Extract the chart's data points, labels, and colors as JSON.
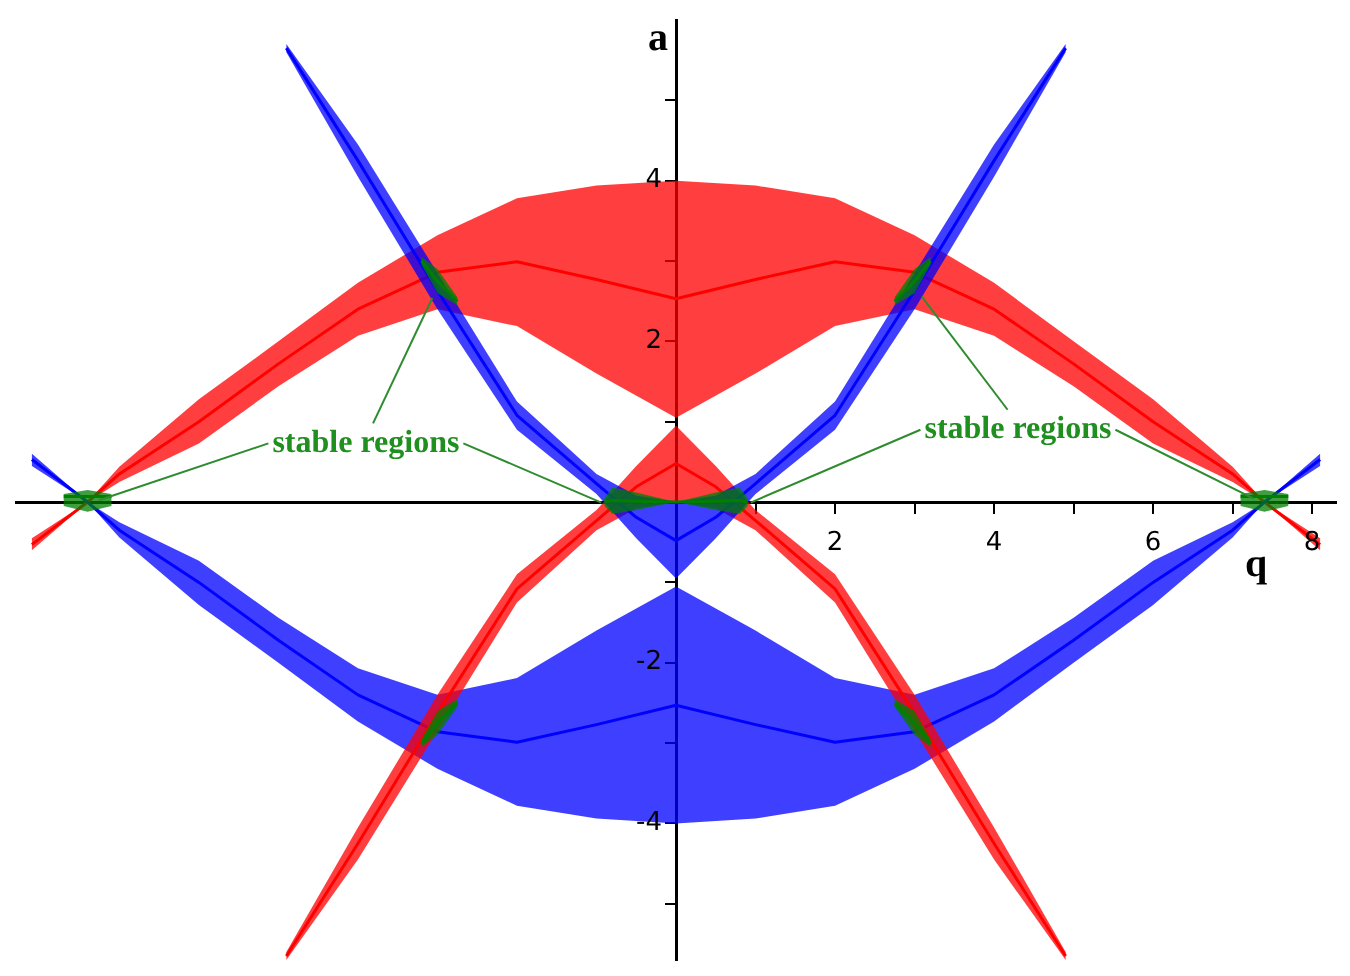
{
  "chart_data": {
    "type": "line",
    "xlabel": "q",
    "ylabel": "a",
    "xlim": [
      -8.3,
      8.3
    ],
    "ylim": [
      -5.7,
      6.0
    ],
    "xticks": [
      {
        "value": 1,
        "label": null
      },
      2,
      {
        "value": 3,
        "label": null
      },
      4,
      {
        "value": 5,
        "label": null
      },
      6,
      {
        "value": 7,
        "label": null
      },
      8
    ],
    "yticks": [
      {
        "value": -5,
        "label": null
      },
      -4,
      {
        "value": -3,
        "label": null
      },
      -2,
      {
        "value": -1,
        "label": null
      },
      {
        "value": 1,
        "label": null
      },
      2,
      {
        "value": 3,
        "label": null
      },
      4,
      {
        "value": 5,
        "label": null
      }
    ],
    "annotations": [
      {
        "text": "stable regions",
        "x": -3.0,
        "y": 2.75
      },
      {
        "text": "stable regions",
        "x": 3.0,
        "y": 2.75
      }
    ],
    "series": [
      {
        "color": "#ff0000",
        "x": [
          -8.1,
          -7.4,
          -7,
          -6,
          -5,
          -4,
          -3,
          -2,
          -1,
          0,
          1,
          2,
          3,
          4,
          5,
          6,
          7,
          7.4,
          8.1
        ],
        "values": [
          -0.53,
          0,
          0.35,
          1.0,
          1.72,
          2.4,
          2.86,
          2.99,
          2.77,
          2.53,
          2.77,
          2.99,
          2.86,
          2.4,
          1.72,
          1.0,
          0.35,
          0,
          -0.53
        ],
        "upper": [
          -0.45,
          0,
          0.44,
          1.28,
          2.0,
          2.73,
          3.32,
          3.78,
          3.94,
          4.0,
          3.94,
          3.78,
          3.32,
          2.73,
          2.0,
          1.28,
          0.44,
          0,
          -0.45
        ],
        "lower": [
          -0.6,
          0,
          0.25,
          0.73,
          1.44,
          2.07,
          2.4,
          2.19,
          1.6,
          1.05,
          1.6,
          2.19,
          2.4,
          2.07,
          1.44,
          0.73,
          0.25,
          0,
          -0.6
        ]
      },
      {
        "color": "#0000ff",
        "x": [
          -8.1,
          -7.4,
          -7,
          -6,
          -5,
          -4,
          -3,
          -2,
          -1,
          0,
          1,
          2,
          3,
          4,
          5,
          6,
          7,
          7.4,
          8.1
        ],
        "values": [
          0.53,
          0,
          -0.35,
          -1.0,
          -1.72,
          -2.4,
          -2.86,
          -2.99,
          -2.77,
          -2.53,
          -2.77,
          -2.99,
          -2.86,
          -2.4,
          -1.72,
          -1.0,
          -0.35,
          0,
          0.53
        ],
        "upper": [
          0.6,
          0,
          -0.25,
          -0.73,
          -1.44,
          -2.07,
          -2.4,
          -2.19,
          -1.6,
          -1.05,
          -1.6,
          -2.19,
          -2.4,
          -2.07,
          -1.44,
          -0.73,
          -0.25,
          0,
          0.6
        ],
        "lower": [
          0.45,
          0,
          -0.44,
          -1.28,
          -2.0,
          -2.73,
          -3.32,
          -3.78,
          -3.94,
          -4.0,
          -3.94,
          -3.78,
          -3.32,
          -2.73,
          -2.0,
          -1.28,
          -0.44,
          0,
          0.45
        ]
      },
      {
        "color": "#ff0000",
        "x": [
          -4.9,
          -4,
          -3,
          -2,
          -1,
          -0.5,
          0,
          0.5,
          1,
          2,
          3,
          4,
          4.9
        ],
        "values": [
          -5.65,
          -4.25,
          -2.63,
          -1.08,
          -0.23,
          0.19,
          0.48,
          0.19,
          -0.23,
          -1.08,
          -2.63,
          -4.25,
          -5.65
        ],
        "upper": [
          -5.6,
          -4.05,
          -2.4,
          -0.9,
          -0.1,
          0.45,
          0.95,
          0.45,
          -0.1,
          -0.9,
          -2.4,
          -4.05,
          -5.6
        ],
        "lower": [
          -5.7,
          -4.45,
          -2.85,
          -1.25,
          -0.35,
          -0.08,
          0,
          -0.08,
          -0.35,
          -1.25,
          -2.85,
          -4.45,
          -5.7
        ]
      },
      {
        "color": "#0000ff",
        "x": [
          -4.9,
          -4,
          -3,
          -2,
          -1,
          -0.5,
          0,
          0.5,
          1,
          2,
          3,
          4,
          4.9
        ],
        "values": [
          5.65,
          4.25,
          2.63,
          1.08,
          0.23,
          -0.19,
          -0.48,
          -0.19,
          0.23,
          1.08,
          2.63,
          4.25,
          5.65
        ],
        "upper": [
          5.7,
          4.45,
          2.85,
          1.25,
          0.35,
          0.08,
          0,
          0.08,
          0.35,
          1.25,
          2.85,
          4.45,
          5.7
        ],
        "lower": [
          5.6,
          4.05,
          2.4,
          0.9,
          0.1,
          -0.45,
          -0.95,
          -0.45,
          0.1,
          0.9,
          2.4,
          4.05,
          5.6
        ]
      },
      {
        "color": "#008000",
        "x": [
          -0.9,
          -0.8,
          -0.5,
          0,
          0.5,
          0.8,
          0.9
        ],
        "values": [
          0,
          0.02,
          0.01,
          0,
          0.01,
          0.02,
          0
        ],
        "upper": [
          0.05,
          0.18,
          0.12,
          0,
          0.12,
          0.18,
          0.05
        ],
        "lower": [
          -0.05,
          -0.15,
          -0.1,
          0,
          -0.1,
          -0.15,
          -0.05
        ]
      },
      {
        "color": "#008000",
        "x": [
          -3.2,
          -3.0,
          -2.75
        ],
        "values": [
          3.0,
          2.75,
          2.5
        ],
        "upper": [
          3.05,
          2.9,
          2.55
        ],
        "lower": [
          2.95,
          2.6,
          2.45
        ]
      },
      {
        "color": "#008000",
        "x": [
          2.75,
          3.0,
          3.2
        ],
        "values": [
          2.5,
          2.75,
          3.0
        ],
        "upper": [
          2.55,
          2.9,
          3.05
        ],
        "lower": [
          2.45,
          2.6,
          2.95
        ]
      },
      {
        "color": "#008000",
        "x": [
          -3.2,
          -3.0,
          -2.75
        ],
        "values": [
          -3.0,
          -2.75,
          -2.5
        ],
        "upper": [
          -2.95,
          -2.6,
          -2.45
        ],
        "lower": [
          -3.05,
          -2.9,
          -2.55
        ]
      },
      {
        "color": "#008000",
        "x": [
          2.75,
          3.0,
          3.2
        ],
        "values": [
          -2.5,
          -2.75,
          -3.0
        ],
        "upper": [
          -2.45,
          -2.6,
          -2.95
        ],
        "lower": [
          -2.55,
          -2.9,
          -3.05
        ]
      },
      {
        "color": "#008000",
        "x": [
          -7.7,
          -7.4,
          -7.1
        ],
        "values": [
          0.07,
          0.07,
          0.07
        ],
        "upper": [
          0.1,
          0.15,
          0.1
        ],
        "lower": [
          -0.05,
          -0.12,
          -0.05
        ]
      },
      {
        "color": "#008000",
        "x": [
          7.1,
          7.4,
          7.7
        ],
        "values": [
          0.07,
          0.07,
          0.07
        ],
        "upper": [
          0.1,
          0.15,
          0.1
        ],
        "lower": [
          -0.05,
          -0.12,
          -0.05
        ]
      }
    ]
  }
}
